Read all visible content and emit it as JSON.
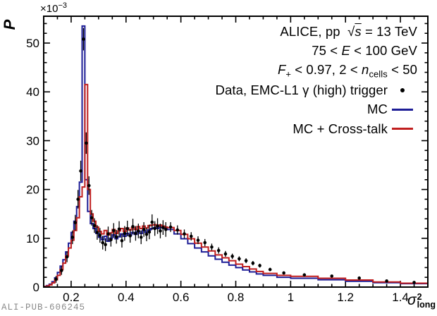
{
  "figure": {
    "watermark": "ALI-PUB-606245",
    "ylabel": "P",
    "y_multiplier": {
      "prefix": "×10",
      "exp": "−3"
    },
    "xlabel": {
      "base": "σ",
      "sup": "2",
      "sub": "long"
    }
  },
  "colors": {
    "mc": "#1d1d96",
    "crosstalk": "#c01e1e",
    "data": "#000000",
    "frame": "#000000",
    "watermark_gray": "#8a8a8a"
  },
  "legend": {
    "rows": [
      {
        "marker": "none",
        "segments": [
          {
            "t": "ALICE, pp  "
          },
          {
            "t": "√"
          },
          {
            "t": "s",
            "ol": true
          },
          {
            "t": " = 13 TeV"
          }
        ]
      },
      {
        "marker": "none",
        "segments": [
          {
            "t": "75 < "
          },
          {
            "t": "E",
            "i": true
          },
          {
            "t": " < 100 GeV"
          }
        ]
      },
      {
        "marker": "none",
        "segments": [
          {
            "t": "F",
            "i": true
          },
          {
            "t": "+",
            "sub": true
          },
          {
            "t": " < 0.97, 2 < "
          },
          {
            "t": "n",
            "i": true
          },
          {
            "t": "cells",
            "sub": true
          },
          {
            "t": " < 50"
          }
        ]
      },
      {
        "marker": "dot",
        "segments": [
          {
            "t": "Data, EMC-L1 γ (high) trigger"
          }
        ]
      },
      {
        "marker": "mc-line",
        "segments": [
          {
            "t": "MC"
          }
        ]
      },
      {
        "marker": "crosstalk-line",
        "segments": [
          {
            "t": "MC + Cross-talk"
          }
        ]
      }
    ]
  },
  "chart_data": {
    "type": "bar",
    "subtype": "step-histograms-with-data-points",
    "title": "ALICE pp 13 TeV photon shower shape",
    "xlabel": "sigma^2_long",
    "ylabel": "P",
    "y_scale_factor": "1e-3",
    "xlim": [
      0.1,
      1.5
    ],
    "ylim": [
      0,
      55.5
    ],
    "xticks": {
      "values": [
        0.2,
        0.4,
        0.6,
        0.8,
        1.0,
        1.2,
        1.4
      ],
      "labels": [
        "0.2",
        "0.4",
        "0.6",
        "0.8",
        "1",
        "1.2",
        "1.4"
      ],
      "minor_step": 0.05
    },
    "yticks": {
      "values": [
        0,
        10,
        20,
        30,
        40,
        50
      ],
      "labels": [
        "0",
        "10",
        "20",
        "30",
        "40",
        "50"
      ],
      "minor_step": 2
    },
    "grid": false,
    "legend_position": "top-right",
    "bin_edges": [
      0.1,
      0.11,
      0.12,
      0.13,
      0.14,
      0.15,
      0.16,
      0.17,
      0.18,
      0.19,
      0.2,
      0.21,
      0.22,
      0.23,
      0.24,
      0.25,
      0.26,
      0.27,
      0.28,
      0.29,
      0.3,
      0.31,
      0.32,
      0.33,
      0.34,
      0.35,
      0.36,
      0.37,
      0.38,
      0.39,
      0.4,
      0.41,
      0.42,
      0.43,
      0.44,
      0.45,
      0.46,
      0.47,
      0.48,
      0.49,
      0.5,
      0.51,
      0.52,
      0.53,
      0.54,
      0.55,
      0.575,
      0.6,
      0.625,
      0.65,
      0.675,
      0.7,
      0.725,
      0.75,
      0.775,
      0.8,
      0.825,
      0.85,
      0.875,
      0.9,
      0.95,
      1.0,
      1.1,
      1.2,
      1.3,
      1.4,
      1.5
    ],
    "series": [
      {
        "name": "MC",
        "color_key": "mc",
        "values": [
          0.15,
          0.3,
          0.6,
          1.1,
          1.9,
          3.0,
          4.3,
          5.6,
          7.2,
          9.0,
          11.2,
          13.5,
          16.5,
          21.5,
          53.5,
          22.0,
          15.5,
          13.0,
          12.0,
          11.0,
          10.2,
          9.7,
          10.4,
          9.4,
          10.0,
          10.7,
          9.9,
          10.3,
          10.9,
          10.4,
          11.0,
          10.6,
          11.2,
          10.8,
          11.4,
          11.0,
          11.6,
          11.2,
          11.7,
          12.0,
          12.2,
          12.0,
          12.3,
          12.1,
          12.0,
          11.8,
          10.9,
          9.9,
          8.9,
          8.0,
          7.2,
          6.4,
          5.7,
          5.1,
          4.5,
          4.0,
          3.5,
          3.1,
          2.7,
          2.4,
          2.0,
          1.8,
          1.5,
          1.2,
          0.9,
          0.7
        ]
      },
      {
        "name": "MC + Cross-talk",
        "color_key": "crosstalk",
        "values": [
          0.1,
          0.2,
          0.45,
          0.85,
          1.5,
          2.4,
          3.6,
          4.9,
          6.4,
          8.0,
          9.6,
          11.6,
          14.2,
          18.5,
          20.5,
          41.5,
          20.0,
          15.0,
          13.5,
          12.3,
          11.4,
          10.9,
          11.6,
          10.7,
          11.1,
          11.8,
          11.0,
          11.5,
          12.0,
          11.4,
          12.1,
          11.7,
          12.2,
          11.8,
          12.4,
          12.0,
          12.5,
          12.1,
          12.6,
          12.7,
          12.8,
          12.5,
          12.7,
          12.5,
          12.3,
          12.2,
          11.6,
          10.8,
          9.9,
          9.0,
          8.2,
          7.4,
          6.6,
          6.0,
          5.4,
          4.7,
          4.2,
          3.7,
          3.2,
          2.8,
          2.4,
          2.2,
          1.8,
          1.45,
          1.05,
          0.8
        ]
      }
    ],
    "data_points": {
      "name": "Data, EMC-L1 γ (high) trigger",
      "color_key": "data",
      "points_xye": [
        [
          0.145,
          1.6,
          0.7
        ],
        [
          0.165,
          3.4,
          0.9
        ],
        [
          0.185,
          6.2,
          1.1
        ],
        [
          0.205,
          10.2,
          1.4
        ],
        [
          0.215,
          13.2,
          1.6
        ],
        [
          0.225,
          18.0,
          1.9
        ],
        [
          0.235,
          23.8,
          2.1
        ],
        [
          0.245,
          50.8,
          2.3
        ],
        [
          0.255,
          29.5,
          2.2
        ],
        [
          0.265,
          20.8,
          1.9
        ],
        [
          0.275,
          14.2,
          1.6
        ],
        [
          0.285,
          12.6,
          1.5
        ],
        [
          0.295,
          11.2,
          1.5
        ],
        [
          0.305,
          10.6,
          1.5
        ],
        [
          0.315,
          9.1,
          1.4
        ],
        [
          0.325,
          8.7,
          1.3
        ],
        [
          0.335,
          10.9,
          1.5
        ],
        [
          0.345,
          9.7,
          1.4
        ],
        [
          0.355,
          11.6,
          1.5
        ],
        [
          0.365,
          10.3,
          1.4
        ],
        [
          0.375,
          11.9,
          1.6
        ],
        [
          0.385,
          9.5,
          1.4
        ],
        [
          0.395,
          11.0,
          1.5
        ],
        [
          0.405,
          12.0,
          1.6
        ],
        [
          0.415,
          10.5,
          1.4
        ],
        [
          0.425,
          12.4,
          1.6
        ],
        [
          0.435,
          11.0,
          1.5
        ],
        [
          0.445,
          11.5,
          1.5
        ],
        [
          0.455,
          10.2,
          1.4
        ],
        [
          0.465,
          11.8,
          1.5
        ],
        [
          0.475,
          10.8,
          1.4
        ],
        [
          0.485,
          11.3,
          1.5
        ],
        [
          0.495,
          13.3,
          1.6
        ],
        [
          0.505,
          12.0,
          1.5
        ],
        [
          0.515,
          12.5,
          1.6
        ],
        [
          0.525,
          11.5,
          1.5
        ],
        [
          0.535,
          12.2,
          1.5
        ],
        [
          0.545,
          11.8,
          1.5
        ],
        [
          0.5625,
          12.3,
          1.0
        ],
        [
          0.5875,
          11.7,
          0.95
        ],
        [
          0.6125,
          10.9,
          0.9
        ],
        [
          0.6375,
          10.4,
          0.85
        ],
        [
          0.6625,
          9.6,
          0.8
        ],
        [
          0.6875,
          9.1,
          0.75
        ],
        [
          0.7125,
          8.2,
          0.7
        ],
        [
          0.7375,
          7.5,
          0.65
        ],
        [
          0.7625,
          6.8,
          0.6
        ],
        [
          0.7875,
          6.3,
          0.55
        ],
        [
          0.8125,
          5.8,
          0.5
        ],
        [
          0.8375,
          5.4,
          0.5
        ],
        [
          0.8625,
          4.9,
          0.45
        ],
        [
          0.8875,
          4.4,
          0.4
        ],
        [
          0.925,
          3.6,
          0.35
        ],
        [
          0.975,
          2.9,
          0.3
        ],
        [
          1.05,
          2.5,
          0.22
        ],
        [
          1.15,
          2.25,
          0.2
        ],
        [
          1.25,
          1.85,
          0.18
        ],
        [
          1.35,
          1.25,
          0.15
        ],
        [
          1.45,
          0.95,
          0.12
        ]
      ]
    }
  }
}
